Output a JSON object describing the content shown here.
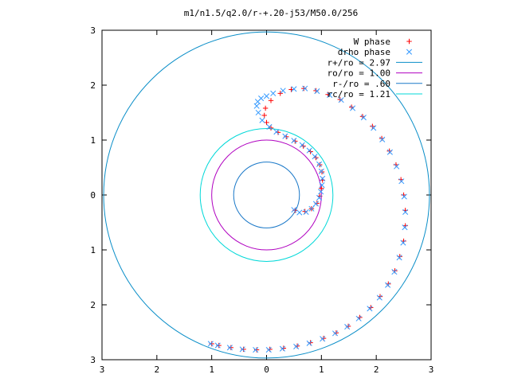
{
  "chart_data": {
    "type": "scatter",
    "title": "m1/n1.5/q2.0/r-+.20-j53/M50.0/256",
    "xlabel": "",
    "ylabel": "",
    "xlim": [
      -3,
      3
    ],
    "ylim": [
      -3,
      3
    ],
    "x_ticks": [
      -3,
      -2,
      -1,
      0,
      1,
      2,
      3
    ],
    "y_ticks": [
      -3,
      -2,
      -1,
      0,
      1,
      2,
      3
    ],
    "x_tick_labels": [
      "3",
      "2",
      "1",
      "0",
      "1",
      "2",
      "3"
    ],
    "y_tick_labels": [
      "3",
      "2",
      "1",
      "0",
      "1",
      "2",
      "3"
    ],
    "grid": false,
    "legend_position": "top-right",
    "colors": {
      "w_phase": "#ff0000",
      "drho_phase": "#3399ff",
      "r_plus": "#0a8ec8",
      "ro": "#b000c0",
      "r_minus": "#1a78c8",
      "rc": "#00d8d8"
    },
    "legend": [
      {
        "key": "w_phase",
        "label": "W phase",
        "marker": "plus"
      },
      {
        "key": "drho_phase",
        "label": "drho phase",
        "marker": "cross"
      },
      {
        "key": "r_plus",
        "label": "r+/ro = 2.97",
        "marker": "line"
      },
      {
        "key": "ro",
        "label": "ro/ro = 1.00",
        "marker": "line"
      },
      {
        "key": "r_minus",
        "label": "r-/ro = .60",
        "marker": "line"
      },
      {
        "key": "rc",
        "label": "rc/ro = 1.21",
        "marker": "line"
      }
    ],
    "circles": [
      {
        "key": "r_plus",
        "radius": 2.97
      },
      {
        "key": "ro",
        "radius": 1.0
      },
      {
        "key": "r_minus",
        "radius": 0.6
      },
      {
        "key": "rc",
        "radius": 1.21
      }
    ],
    "series": [
      {
        "key": "w_phase",
        "marker": "plus",
        "points": [
          [
            0.52,
            -0.28
          ],
          [
            0.7,
            -0.3
          ],
          [
            0.82,
            -0.25
          ],
          [
            0.92,
            -0.15
          ],
          [
            0.97,
            -0.02
          ],
          [
            1.0,
            0.12
          ],
          [
            1.02,
            0.27
          ],
          [
            1.01,
            0.42
          ],
          [
            0.97,
            0.55
          ],
          [
            0.9,
            0.68
          ],
          [
            0.8,
            0.79
          ],
          [
            0.67,
            0.89
          ],
          [
            0.52,
            0.98
          ],
          [
            0.36,
            1.06
          ],
          [
            0.21,
            1.14
          ],
          [
            0.08,
            1.22
          ],
          [
            0.0,
            1.32
          ],
          [
            -0.04,
            1.45
          ],
          [
            -0.02,
            1.58
          ],
          [
            0.08,
            1.72
          ],
          [
            0.25,
            1.85
          ],
          [
            0.45,
            1.92
          ],
          [
            0.68,
            1.94
          ],
          [
            0.9,
            1.9
          ],
          [
            1.12,
            1.83
          ],
          [
            1.34,
            1.74
          ],
          [
            1.55,
            1.6
          ],
          [
            1.75,
            1.43
          ],
          [
            1.93,
            1.25
          ],
          [
            2.1,
            1.03
          ],
          [
            2.24,
            0.8
          ],
          [
            2.36,
            0.55
          ],
          [
            2.45,
            0.28
          ],
          [
            2.5,
            0.0
          ],
          [
            2.53,
            -0.28
          ],
          [
            2.53,
            -0.56
          ],
          [
            2.5,
            -0.84
          ],
          [
            2.43,
            -1.12
          ],
          [
            2.34,
            -1.38
          ],
          [
            2.22,
            -1.62
          ],
          [
            2.07,
            -1.85
          ],
          [
            1.9,
            -2.05
          ],
          [
            1.7,
            -2.23
          ],
          [
            1.49,
            -2.39
          ],
          [
            1.27,
            -2.51
          ],
          [
            1.04,
            -2.61
          ],
          [
            0.8,
            -2.69
          ],
          [
            0.56,
            -2.75
          ],
          [
            0.31,
            -2.79
          ],
          [
            0.06,
            -2.81
          ],
          [
            -0.18,
            -2.82
          ],
          [
            -0.42,
            -2.81
          ],
          [
            -0.65,
            -2.78
          ],
          [
            -0.87,
            -2.74
          ],
          [
            -1.0,
            -2.71
          ]
        ]
      },
      {
        "key": "drho_phase",
        "marker": "cross",
        "points": [
          [
            0.5,
            -0.27
          ],
          [
            0.6,
            -0.32
          ],
          [
            0.72,
            -0.31
          ],
          [
            0.82,
            -0.25
          ],
          [
            0.9,
            -0.16
          ],
          [
            0.96,
            -0.05
          ],
          [
            0.99,
            0.06
          ],
          [
            1.01,
            0.18
          ],
          [
            1.02,
            0.3
          ],
          [
            1.0,
            0.43
          ],
          [
            0.96,
            0.56
          ],
          [
            0.88,
            0.7
          ],
          [
            0.78,
            0.81
          ],
          [
            0.65,
            0.91
          ],
          [
            0.5,
            0.99
          ],
          [
            0.34,
            1.07
          ],
          [
            0.18,
            1.15
          ],
          [
            0.05,
            1.24
          ],
          [
            -0.08,
            1.36
          ],
          [
            -0.15,
            1.5
          ],
          [
            -0.18,
            1.62
          ],
          [
            -0.16,
            1.7
          ],
          [
            -0.1,
            1.76
          ],
          [
            0.0,
            1.8
          ],
          [
            0.12,
            1.85
          ],
          [
            0.3,
            1.9
          ],
          [
            0.5,
            1.93
          ],
          [
            0.7,
            1.94
          ],
          [
            0.92,
            1.89
          ],
          [
            1.15,
            1.82
          ],
          [
            1.36,
            1.73
          ],
          [
            1.57,
            1.58
          ],
          [
            1.77,
            1.41
          ],
          [
            1.95,
            1.22
          ],
          [
            2.11,
            1.01
          ],
          [
            2.25,
            0.78
          ],
          [
            2.37,
            0.52
          ],
          [
            2.46,
            0.25
          ],
          [
            2.51,
            -0.03
          ],
          [
            2.53,
            -0.31
          ],
          [
            2.52,
            -0.59
          ],
          [
            2.49,
            -0.87
          ],
          [
            2.42,
            -1.14
          ],
          [
            2.33,
            -1.4
          ],
          [
            2.21,
            -1.64
          ],
          [
            2.06,
            -1.87
          ],
          [
            1.88,
            -2.07
          ],
          [
            1.68,
            -2.25
          ],
          [
            1.47,
            -2.4
          ],
          [
            1.25,
            -2.52
          ],
          [
            1.02,
            -2.62
          ],
          [
            0.78,
            -2.7
          ],
          [
            0.54,
            -2.76
          ],
          [
            0.29,
            -2.8
          ],
          [
            0.04,
            -2.82
          ],
          [
            -0.2,
            -2.82
          ],
          [
            -0.44,
            -2.81
          ],
          [
            -0.67,
            -2.78
          ],
          [
            -0.89,
            -2.74
          ],
          [
            -1.02,
            -2.71
          ]
        ]
      }
    ]
  }
}
